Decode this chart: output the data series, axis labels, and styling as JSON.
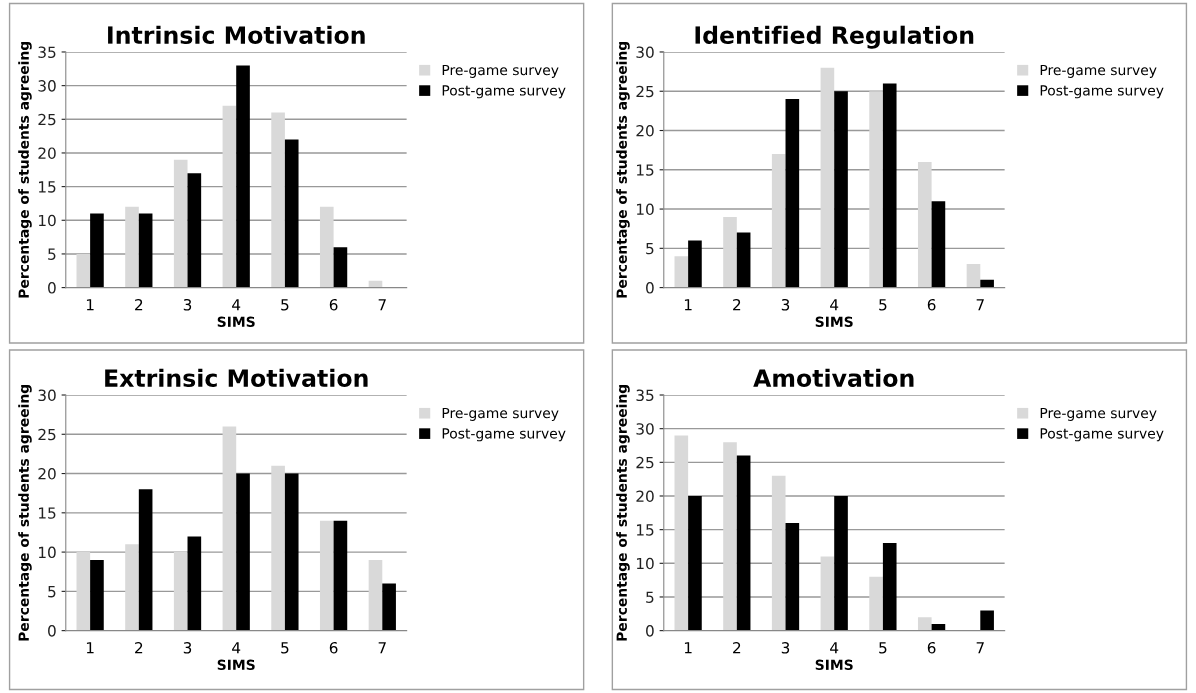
{
  "chart_data": [
    {
      "type": "bar",
      "title": "Intrinsic Motivation",
      "xlabel": "SIMS",
      "ylabel": "Percentage of students agreeing",
      "categories": [
        "1",
        "2",
        "3",
        "4",
        "5",
        "6",
        "7"
      ],
      "series": [
        {
          "name": "Pre-game survey",
          "color": "#d9d9d9",
          "values": [
            5,
            12,
            19,
            27,
            26,
            12,
            1
          ]
        },
        {
          "name": "Post-game survey",
          "color": "#000000",
          "values": [
            11,
            11,
            17,
            33,
            22,
            6,
            0
          ]
        }
      ],
      "ylim": [
        0,
        35
      ],
      "yticks": [
        0,
        5,
        10,
        15,
        20,
        25,
        30,
        35
      ],
      "grid": "y",
      "legend": "top right"
    },
    {
      "type": "bar",
      "title": "Identified Regulation",
      "xlabel": "SIMS",
      "ylabel": "Percentage of students agreeing",
      "categories": [
        "1",
        "2",
        "3",
        "4",
        "5",
        "6",
        "7"
      ],
      "series": [
        {
          "name": "Pre-game survey",
          "color": "#d9d9d9",
          "values": [
            4,
            9,
            17,
            28,
            25,
            16,
            3
          ]
        },
        {
          "name": "Post-game survey",
          "color": "#000000",
          "values": [
            6,
            7,
            24,
            25,
            26,
            11,
            1
          ]
        }
      ],
      "ylim": [
        0,
        30
      ],
      "yticks": [
        0,
        5,
        10,
        15,
        20,
        25,
        30
      ],
      "grid": "y",
      "legend": "top right"
    },
    {
      "type": "bar",
      "title": "Extrinsic Motivation",
      "xlabel": "SIMS",
      "ylabel": "Percentage of students agreeing",
      "categories": [
        "1",
        "2",
        "3",
        "4",
        "5",
        "6",
        "7"
      ],
      "series": [
        {
          "name": "Pre-game survey",
          "color": "#d9d9d9",
          "values": [
            10,
            11,
            10,
            26,
            21,
            14,
            9
          ]
        },
        {
          "name": "Post-game survey",
          "color": "#000000",
          "values": [
            9,
            18,
            12,
            20,
            20,
            14,
            6
          ]
        }
      ],
      "ylim": [
        0,
        30
      ],
      "yticks": [
        0,
        5,
        10,
        15,
        20,
        25,
        30
      ],
      "grid": "y",
      "legend": "top right"
    },
    {
      "type": "bar",
      "title": "Amotivation",
      "xlabel": "SIMS",
      "ylabel": "Percentage of students agreeing",
      "categories": [
        "1",
        "2",
        "3",
        "4",
        "5",
        "6",
        "7"
      ],
      "series": [
        {
          "name": "Pre-game survey",
          "color": "#d9d9d9",
          "values": [
            29,
            28,
            23,
            11,
            8,
            2,
            0
          ]
        },
        {
          "name": "Post-game survey",
          "color": "#000000",
          "values": [
            20,
            26,
            16,
            20,
            13,
            1,
            3
          ]
        }
      ],
      "ylim": [
        0,
        35
      ],
      "yticks": [
        0,
        5,
        10,
        15,
        20,
        25,
        30,
        35
      ],
      "grid": "y",
      "legend": "top right"
    }
  ]
}
